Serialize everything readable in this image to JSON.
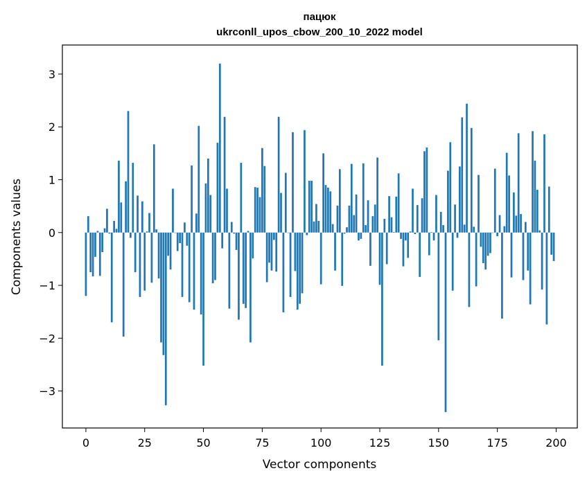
{
  "chart_data": {
    "type": "bar",
    "title": "пацюк",
    "subtitle": "ukrconll_upos_cbow_200_10_2022 model",
    "xlabel": "Vector components",
    "ylabel": "Components values",
    "xlim": [
      -10,
      209
    ],
    "ylim": [
      -3.7,
      3.55
    ],
    "xticks": [
      0,
      25,
      50,
      75,
      100,
      125,
      150,
      175,
      200
    ],
    "yticks": [
      -3,
      -2,
      -1,
      0,
      1,
      2,
      3
    ],
    "xtick_labels": [
      "0",
      "25",
      "50",
      "75",
      "100",
      "125",
      "150",
      "175",
      "200"
    ],
    "ytick_labels": [
      "−3",
      "−2",
      "−1",
      "0",
      "1",
      "2",
      "3"
    ],
    "grid": false,
    "legend": false,
    "bar_color": "#1f77b4",
    "values": [
      -1.2,
      0.31,
      -0.75,
      -0.83,
      -0.46,
      0.03,
      -0.82,
      -0.37,
      0.08,
      0.45,
      -0.02,
      -1.7,
      0.22,
      0.07,
      1.36,
      0.57,
      -1.97,
      0.97,
      2.3,
      -0.1,
      1.32,
      -0.75,
      0.7,
      -1.22,
      0.59,
      -1.1,
      0.02,
      0.37,
      -0.95,
      1.67,
      0.06,
      -0.87,
      -2.08,
      -2.32,
      -3.27,
      -0.44,
      -0.7,
      0.83,
      0.0,
      -0.35,
      -0.2,
      -1.22,
      0.19,
      -0.25,
      -1.32,
      1.27,
      -1.46,
      0.36,
      2.02,
      -1.55,
      -2.52,
      0.93,
      1.4,
      0.71,
      -0.96,
      -0.9,
      1.7,
      3.2,
      -0.3,
      2.19,
      0.83,
      -1.44,
      0.2,
      -0.02,
      -0.33,
      -1.65,
      1.32,
      -1.35,
      -1.43,
      0.03,
      -2.08,
      -0.49,
      0.86,
      0.85,
      0.67,
      1.6,
      1.26,
      -0.94,
      -0.57,
      -0.72,
      -0.14,
      -0.74,
      2.19,
      0.75,
      -1.51,
      1.13,
      0.0,
      -1.22,
      1.9,
      -0.73,
      -1.46,
      -1.35,
      -1.15,
      1.94,
      -0.05,
      0.98,
      0.98,
      0.21,
      0.54,
      0.22,
      -0.98,
      1.5,
      0.9,
      0.85,
      0.78,
      0.16,
      -0.72,
      0.51,
      1.2,
      -1.01,
      -0.02,
      0.1,
      0.51,
      1.3,
      0.33,
      0.72,
      -0.15,
      -0.12,
      1.31,
      0.14,
      0.61,
      -0.63,
      0.31,
      0.53,
      1.42,
      -0.99,
      -2.52,
      0.26,
      -0.6,
      0.69,
      0.29,
      0.01,
      0.68,
      1.12,
      -0.12,
      -0.64,
      -0.15,
      -0.48,
      0.02,
      0.83,
      -0.03,
      0.52,
      -0.84,
      0.65,
      1.54,
      1.61,
      -0.43,
      0.01,
      -0.15,
      0.71,
      -2.04,
      0.39,
      0.14,
      -3.4,
      1.17,
      1.71,
      -1.1,
      0.53,
      -0.1,
      1.25,
      2.18,
      0.15,
      2.44,
      -1.41,
      1.98,
      0.11,
      -1.02,
      1.09,
      -0.27,
      -0.58,
      -0.7,
      -0.44,
      -0.39,
      0.0,
      1.21,
      -0.07,
      0.33,
      -1.63,
      0.12,
      1.51,
      1.08,
      -0.85,
      0.76,
      0.32,
      1.88,
      0.35,
      -0.9,
      0.2,
      -0.72,
      -1.36,
      1.92,
      1.36,
      0.81,
      0.04,
      -1.08,
      1.86,
      -1.74,
      0.87,
      -0.42,
      -0.54
    ]
  }
}
